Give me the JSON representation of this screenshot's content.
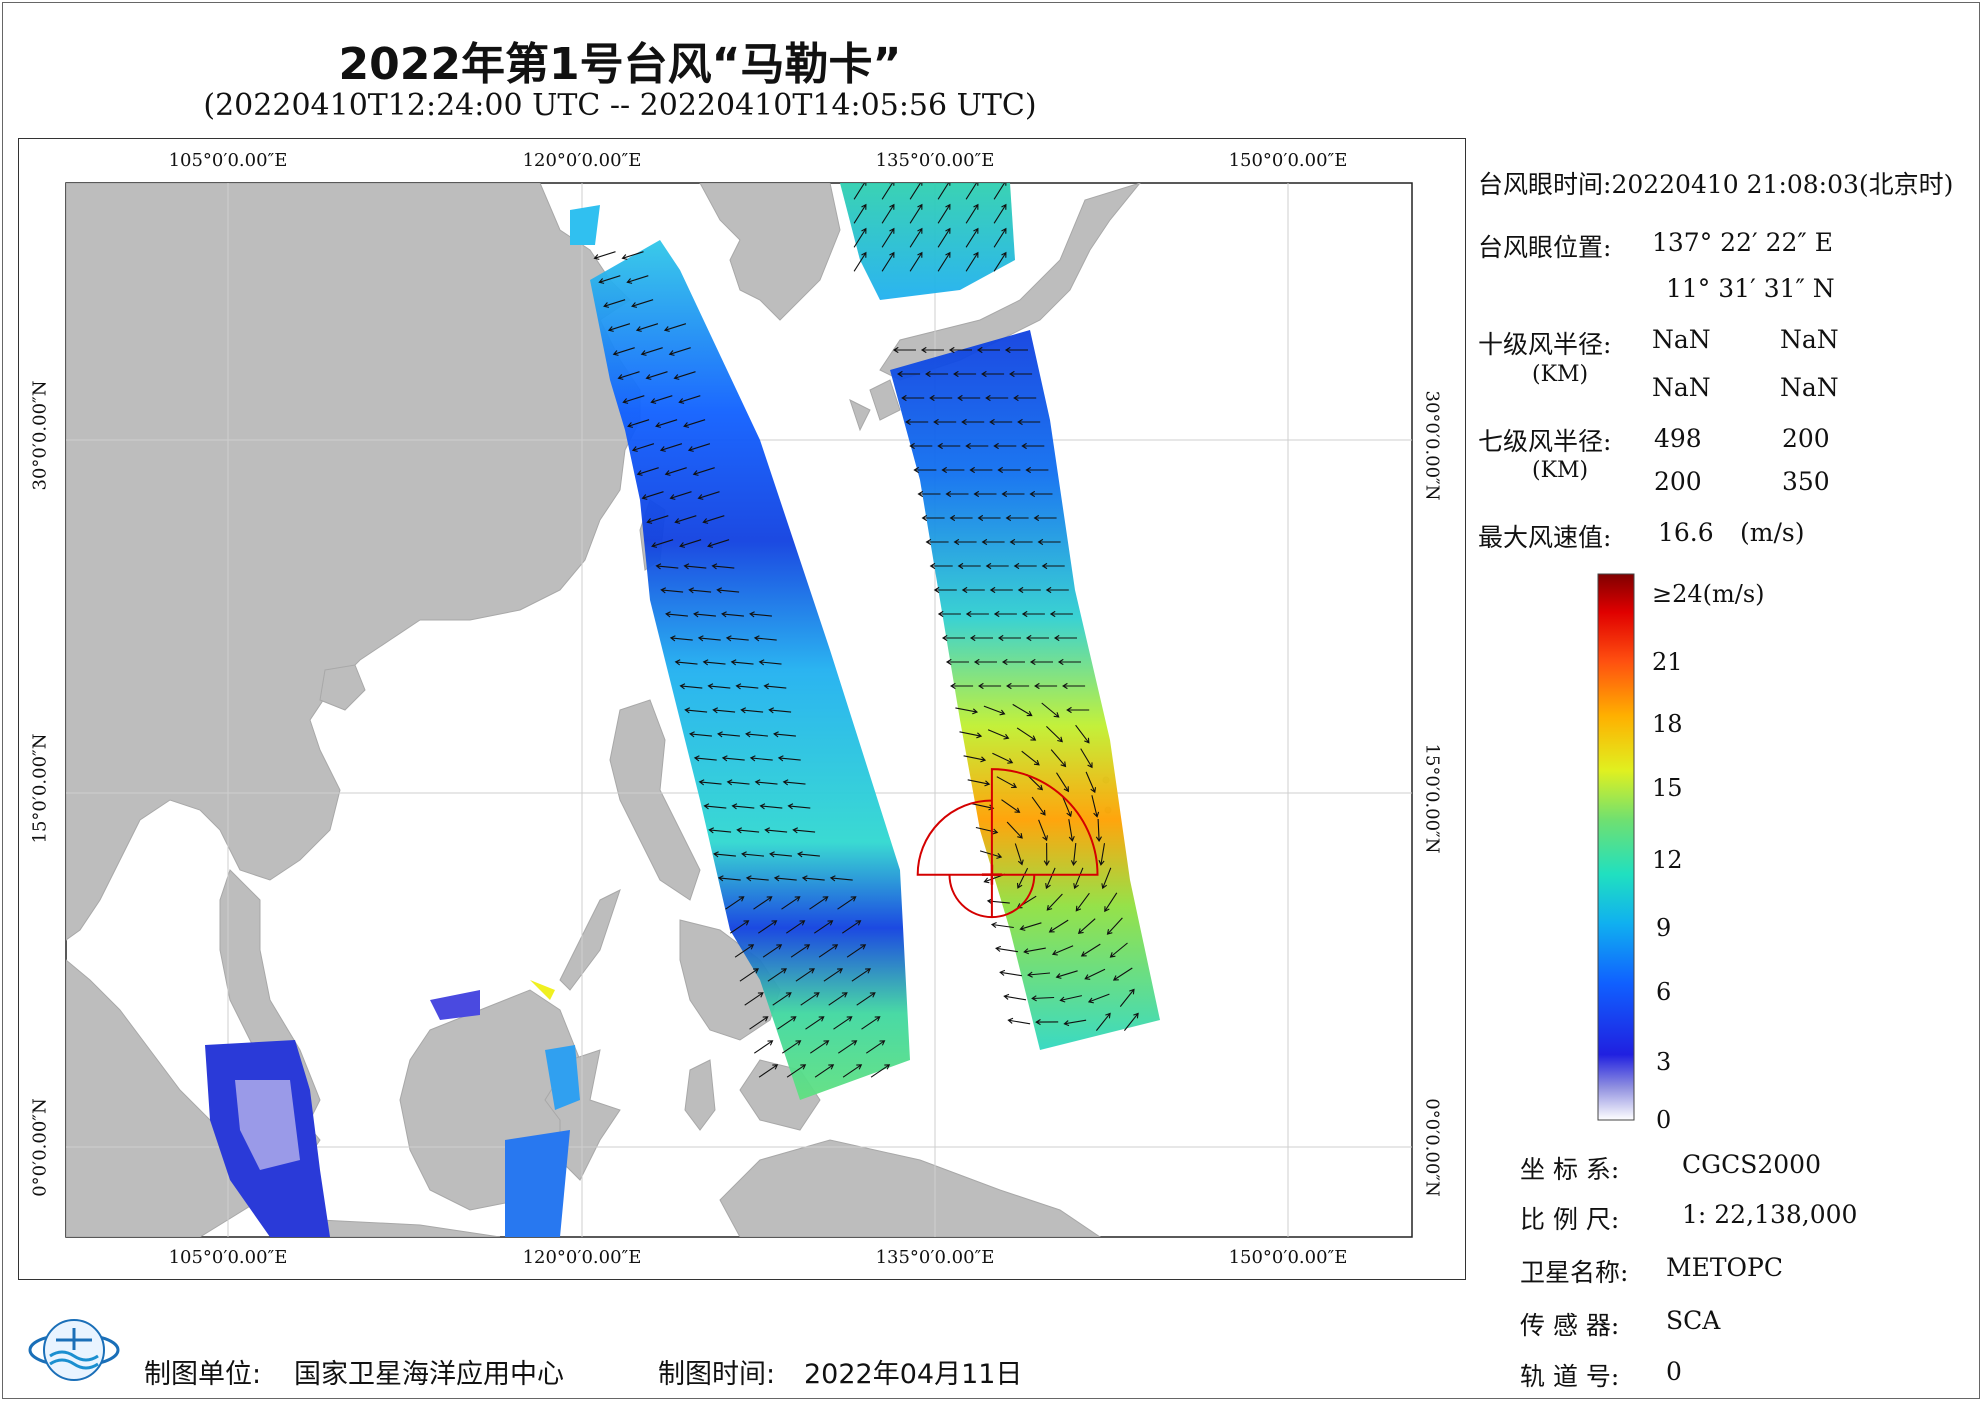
{
  "title": "2022年第1号台风“马勒卡”",
  "subtitle": "(20220410T12:24:00 UTC -- 20220410T14:05:56 UTC)",
  "map": {
    "lon_labels": [
      "105°0′0.00″E",
      "120°0′0.00″E",
      "135°0′0.00″E",
      "150°0′0.00″E"
    ],
    "lat_labels": [
      "30°0′0.00″N",
      "15°0′0.00″N",
      "0°0′0.00″N"
    ],
    "typhoon_eye": {
      "lon": 137.37,
      "lat": 11.53
    },
    "colors": {
      "land": "#bdbdbd",
      "sea": "#ffffff",
      "eye_marker": "#d40000"
    }
  },
  "info": {
    "eye_time_label": "台风眼时间:",
    "eye_time_value": "20220410 21:08:03(北京时)",
    "eye_pos_label": "台风眼位置:",
    "eye_lon": "137° 22′ 22″ E",
    "eye_lat": "11° 31′ 31″ N",
    "r10_label": "十级风半径:",
    "r10_unit": "(KM)",
    "r10_values": [
      "NaN",
      "NaN",
      "NaN",
      "NaN"
    ],
    "r7_label": "七级风半径:",
    "r7_unit": "(KM)",
    "r7_values": [
      "498",
      "200",
      "200",
      "350"
    ],
    "max_wind_label": "最大风速值:",
    "max_wind_value": "16.6",
    "max_wind_unit": "(m/s)"
  },
  "colorbar": {
    "labels": [
      "≥24(m/s)",
      "21",
      "18",
      "15",
      "12",
      "9",
      "6",
      "3",
      "0"
    ],
    "stops": [
      "#ffffff",
      "#9090e0",
      "#2020e0",
      "#1060ff",
      "#10b0f0",
      "#20e0c0",
      "#70e070",
      "#e0f020",
      "#ffb000",
      "#ff5010",
      "#e00000",
      "#800000"
    ]
  },
  "meta": {
    "crs_label": "坐 标 系:",
    "crs_value": "CGCS2000",
    "scale_label": "比 例 尺:",
    "scale_value": "1: 22,138,000",
    "satellite_label": "卫星名称:",
    "satellite_value": "METOPC",
    "sensor_label": "传 感 器:",
    "sensor_value": "SCA",
    "orbit_label": "轨 道 号:",
    "orbit_value": "0"
  },
  "footer": {
    "unit_label": "制图单位:",
    "unit_value": "国家卫星海洋应用中心",
    "time_label": "制图时间:",
    "time_value": "2022年04月11日"
  }
}
